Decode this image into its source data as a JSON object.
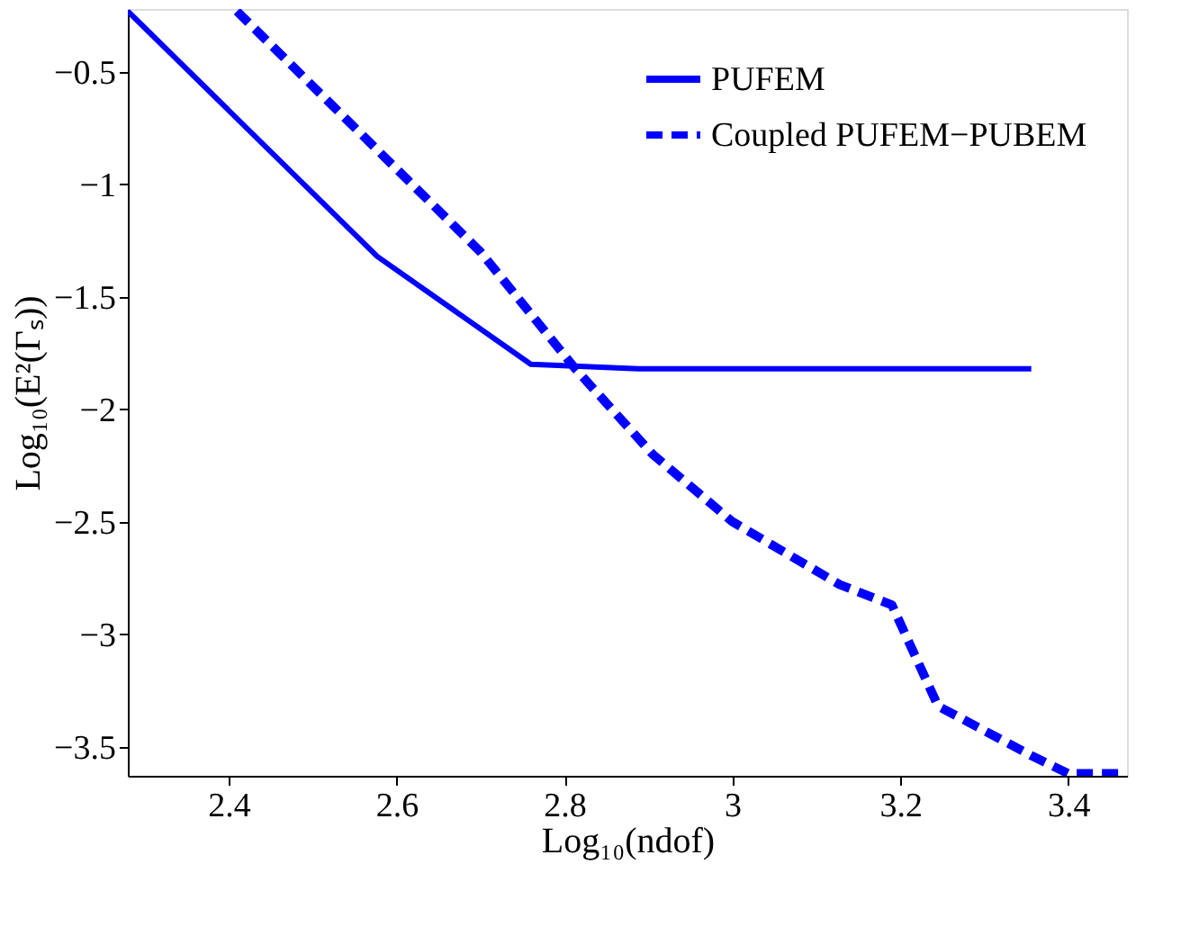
{
  "chart_data": {
    "type": "line",
    "xlabel": "Log₁₀(ndof)",
    "ylabel": "Log₁₀(E²(Γₛ))",
    "xlim": [
      2.28,
      3.47
    ],
    "ylim": [
      -3.63,
      -0.22
    ],
    "xticks": [
      2.4,
      2.6,
      2.8,
      3,
      3.2,
      3.4
    ],
    "yticks": [
      -3.5,
      -3,
      -2.5,
      -2,
      -1.5,
      -1,
      -0.5
    ],
    "grid": false,
    "legend": "top right",
    "marker": "none",
    "series": [
      {
        "name": "PUFEM",
        "color": "#0000ff",
        "line_style": "solid",
        "x": [
          2.28,
          2.577,
          2.76,
          2.888,
          3.356
        ],
        "values": [
          -0.23,
          -1.32,
          -1.8,
          -1.82,
          -1.82
        ]
      },
      {
        "name": "Coupled PUFEM−PUBEM",
        "color": "#0000ff",
        "line_style": "dashed",
        "x": [
          2.41,
          2.7,
          2.813,
          2.905,
          3.0,
          3.128,
          3.19,
          3.245,
          3.356,
          3.4,
          3.47
        ],
        "values": [
          -0.23,
          -1.3,
          -1.82,
          -2.2,
          -2.5,
          -2.78,
          -2.87,
          -3.32,
          -3.54,
          -3.62,
          -3.62
        ]
      }
    ]
  }
}
